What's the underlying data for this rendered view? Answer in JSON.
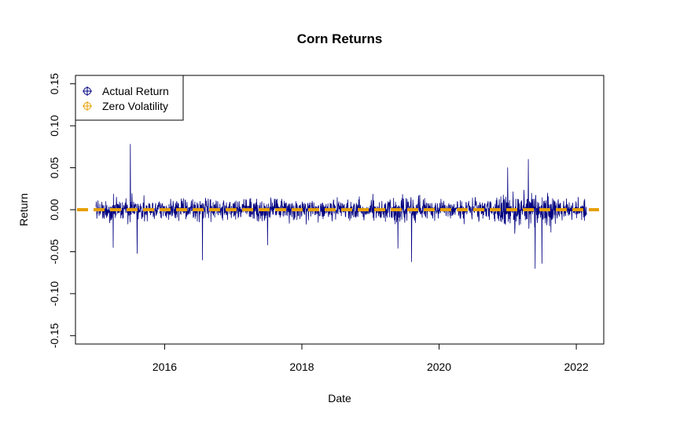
{
  "chart_data": {
    "type": "line",
    "title": "Corn Returns",
    "xlabel": "Date",
    "ylabel": "Return",
    "xlim": [
      2014.7,
      2022.4
    ],
    "ylim": [
      -0.16,
      0.16
    ],
    "x_ticks": [
      {
        "value": 2016,
        "label": "2016"
      },
      {
        "value": 2018,
        "label": "2018"
      },
      {
        "value": 2020,
        "label": "2020"
      },
      {
        "value": 2022,
        "label": "2022"
      }
    ],
    "y_ticks": [
      {
        "value": -0.15,
        "label": "-0.15"
      },
      {
        "value": -0.1,
        "label": "-0.10"
      },
      {
        "value": -0.05,
        "label": "-0.05"
      },
      {
        "value": 0.0,
        "label": "0.00"
      },
      {
        "value": 0.05,
        "label": "0.05"
      },
      {
        "value": 0.1,
        "label": "0.10"
      },
      {
        "value": 0.15,
        "label": "0.15"
      }
    ],
    "legend_position": "top-left",
    "grid": false,
    "series": [
      {
        "name": "Actual Return",
        "color": "#000080",
        "x_start": 2015.0,
        "x_end": 2022.15,
        "frequency": "daily (trading days)",
        "notable_points": [
          {
            "x": 2015.25,
            "y": -0.045
          },
          {
            "x": 2015.5,
            "y": 0.078
          },
          {
            "x": 2015.6,
            "y": -0.052
          },
          {
            "x": 2016.55,
            "y": -0.06
          },
          {
            "x": 2017.5,
            "y": -0.042
          },
          {
            "x": 2019.4,
            "y": -0.046
          },
          {
            "x": 2019.6,
            "y": -0.062
          },
          {
            "x": 2021.0,
            "y": 0.05
          },
          {
            "x": 2021.3,
            "y": 0.06
          },
          {
            "x": 2021.4,
            "y": -0.07
          },
          {
            "x": 2021.5,
            "y": -0.064
          }
        ],
        "typical_range": [
          -0.03,
          0.03
        ]
      },
      {
        "name": "Zero Volatility",
        "color": "#E69F00",
        "line_style": "dashed",
        "x": [
          2014.7,
          2022.4
        ],
        "y": [
          0.0,
          0.0
        ]
      }
    ]
  }
}
